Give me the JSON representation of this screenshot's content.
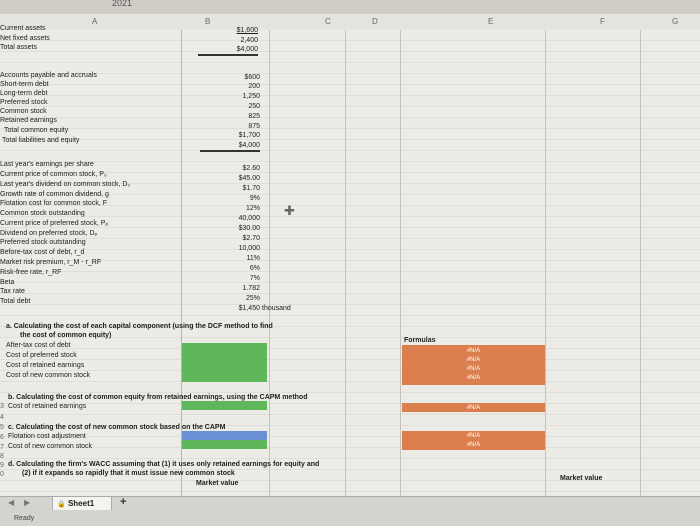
{
  "top_year": "2021",
  "columns": [
    "A",
    "B",
    "C",
    "D",
    "E",
    "F",
    "G"
  ],
  "balance_sheet": [
    {
      "label": "Current assets",
      "value": "$1,600"
    },
    {
      "label": "Net fixed assets",
      "value": "2,400"
    },
    {
      "label": "Total assets",
      "value": "$4,000"
    }
  ],
  "liabilities": [
    {
      "label": "Accounts payable and accruals",
      "value": "$600"
    },
    {
      "label": "Short-term debt",
      "value": "200"
    },
    {
      "label": "Long-term debt",
      "value": "1,250"
    },
    {
      "label": "Preferred stock",
      "value": "250"
    },
    {
      "label": "Common stock",
      "value": "825"
    },
    {
      "label": "Retained earnings",
      "value": "875"
    },
    {
      "label": "Total common equity",
      "value": "$1,700"
    },
    {
      "label": "Total liabilities and equity",
      "value": "$4,000"
    }
  ],
  "inputs": [
    {
      "label": "Last year's earnings per share",
      "value": "$2.60"
    },
    {
      "label": "Current price of common stock, P₀",
      "value": "$45.00"
    },
    {
      "label": "Last year's dividend on common stock, D₀",
      "value": "$1.70"
    },
    {
      "label": "Growth rate of common dividend, g",
      "value": "9%"
    },
    {
      "label": "Flotation cost for common stock, F",
      "value": "12%"
    },
    {
      "label": "Common stock outstanding",
      "value": "40,000"
    },
    {
      "label": "Current price of preferred stock, Pₚ",
      "value": "$30.00"
    },
    {
      "label": "Dividend on preferred stock, Dₚ",
      "value": "$2.70"
    },
    {
      "label": "Preferred stock outstanding",
      "value": "10,000"
    },
    {
      "label": "Before-tax cost of debt, r_d",
      "value": "11%"
    },
    {
      "label": "Market risk premium, r_M - r_RF",
      "value": "6%"
    },
    {
      "label": "Risk-free rate, r_RF",
      "value": "7%"
    },
    {
      "label": "Beta",
      "value": "1.782"
    },
    {
      "label": "Tax rate",
      "value": "25%"
    },
    {
      "label": "Total debt",
      "value": "$1,450"
    }
  ],
  "total_debt_unit": "thousand",
  "section_a": {
    "title_line1": "a. Calculating the cost of each capital component (using the DCF method to find",
    "title_line2": "the cost of common equity)",
    "rows": [
      "After-tax cost of debt",
      "Cost of preferred stock",
      "Cost of retained earnings",
      "Cost of new common stock"
    ],
    "formulas_header": "Formulas",
    "formula_values": [
      "#N/A",
      "#N/A",
      "#N/A",
      "#N/A"
    ]
  },
  "section_b": {
    "title": "b. Calculating the cost of common equity from retained earnings, using the CAPM method",
    "row": "Cost of retained earnings",
    "formula_value": "#N/A"
  },
  "section_c": {
    "title": "c. Calculating the cost of new common stock based on the CAPM",
    "rows": [
      "Flotation cost adjustment",
      "Cost of new common stock"
    ],
    "formula_values": [
      "#N/A",
      "#N/A"
    ]
  },
  "section_d": {
    "title_line1": "d. Calculating the firm's WACC assuming that (1) it uses only retained earnings for equity and",
    "title_line2": "(2) if it expands so rapidly that it must issue new common stock",
    "market_value_label": "Market value",
    "market_value_label_g": "Market value"
  },
  "row_numbers_bottom": [
    "3",
    "4",
    "5",
    "6",
    "7",
    "8",
    "9",
    "0"
  ],
  "sheet_tab": "Sheet1",
  "add_sheet": "+",
  "status": "Ready"
}
